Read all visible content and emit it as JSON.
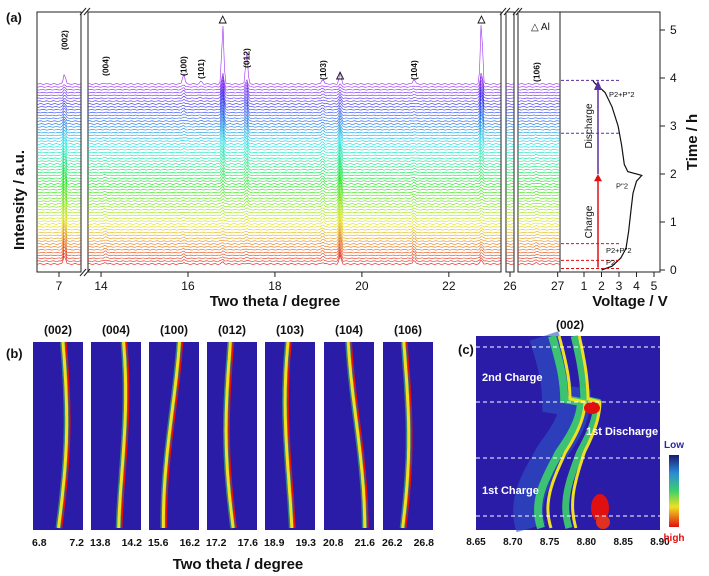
{
  "panel_a": {
    "label": "(a)",
    "ylabel": "Intensity / a.u.",
    "xlabel": "Two theta / degree",
    "ticks_seg1": [
      "7"
    ],
    "ticks_seg2": [
      "14",
      "16",
      "18",
      "20",
      "22"
    ],
    "ticks_seg3": [
      "26"
    ],
    "ticks_seg4": [
      "27"
    ],
    "peaks": [
      {
        "label": "(002)",
        "pos": 7.05
      },
      {
        "label": "(004)",
        "pos": 14.1
      },
      {
        "label": "(100)",
        "pos": 15.9
      },
      {
        "label": "(101)",
        "pos": 16.3
      },
      {
        "label": "△",
        "pos": 16.8
      },
      {
        "label": "(012)",
        "pos": 17.35
      },
      {
        "label": "(103)",
        "pos": 19.1
      },
      {
        "label": "△",
        "pos": 19.5
      },
      {
        "label": "(104)",
        "pos": 21.2
      },
      {
        "label": "△",
        "pos": 22.75
      },
      {
        "label": "(106)",
        "pos": 26.5
      }
    ],
    "legend": "△ Al",
    "voltage": {
      "xlabel": "Voltage / V",
      "xticks": [
        "1",
        "2",
        "3",
        "4",
        "5"
      ],
      "ylabel": "Time / h",
      "yticks": [
        "0",
        "1",
        "2",
        "3",
        "4",
        "5"
      ],
      "phases": [
        "P2",
        "P2+P''2",
        "P''2",
        "P2+P''2"
      ],
      "arrows": [
        "Charge",
        "Discharge"
      ],
      "curve": [
        [
          2.0,
          0.0
        ],
        [
          2.6,
          0.08
        ],
        [
          3.1,
          0.25
        ],
        [
          3.4,
          0.45
        ],
        [
          3.55,
          0.8
        ],
        [
          3.7,
          1.3
        ],
        [
          3.8,
          1.6
        ],
        [
          4.0,
          1.85
        ],
        [
          4.25,
          1.95
        ],
        [
          4.3,
          1.97
        ],
        [
          3.5,
          2.05
        ],
        [
          3.3,
          2.2
        ],
        [
          3.15,
          2.6
        ],
        [
          2.95,
          3.0
        ],
        [
          2.6,
          3.4
        ],
        [
          2.2,
          3.7
        ],
        [
          1.6,
          3.9
        ],
        [
          1.5,
          3.95
        ]
      ]
    }
  },
  "panel_b": {
    "label": "(b)",
    "xlabel": "Two theta / degree",
    "maps": [
      {
        "title": "(002)",
        "min": "6.8",
        "max": "7.2"
      },
      {
        "title": "(004)",
        "min": "13.8",
        "max": "14.2"
      },
      {
        "title": "(100)",
        "min": "15.6",
        "max": "16.2"
      },
      {
        "title": "(012)",
        "min": "17.2",
        "max": "17.6"
      },
      {
        "title": "(103)",
        "min": "18.9",
        "max": "19.3"
      },
      {
        "title": "(104)",
        "min": "20.8",
        "max": "21.6"
      },
      {
        "title": "(106)",
        "min": "26.2",
        "max": "26.8"
      }
    ]
  },
  "panel_c": {
    "label": "(c)",
    "title": "(002)",
    "xticks": [
      "8.65",
      "8.70",
      "8.75",
      "8.80",
      "8.85",
      "8.90"
    ],
    "regions": [
      "2nd Charge",
      "1st Discharge",
      "1st Charge"
    ],
    "colorbar": {
      "low": "Low",
      "high": "high"
    }
  },
  "colors": {
    "map_bg": "#2b1ca8",
    "red": "#e01010",
    "purple": "#5a2fa0"
  }
}
